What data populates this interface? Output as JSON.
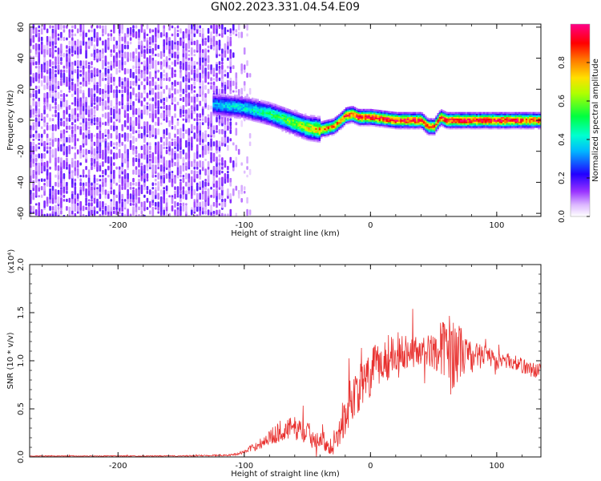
{
  "title": "GN02.2023.331.04.54.E09",
  "chart_data": [
    {
      "type": "heatmap",
      "xlabel": "Height of straight line (km)",
      "ylabel": "Frequency (Hz)",
      "xlim": [
        -270,
        135
      ],
      "ylim": [
        -62,
        62
      ],
      "xticks": [
        -200,
        -100,
        0,
        100
      ],
      "yticks": [
        -60,
        -40,
        -20,
        0,
        20,
        40,
        60
      ],
      "colorbar": {
        "label": "Normalized spectral amplitude",
        "range": [
          0,
          1
        ],
        "ticks": [
          "0.0",
          "0.2",
          "0.4",
          "0.6",
          "0.8"
        ],
        "tick_values": [
          0,
          0.2,
          0.4,
          0.6,
          0.8
        ],
        "colormap": "hsv-reversed (magenta-blue-cyan-green-yellow-red)"
      },
      "ridge": {
        "description": "frequency of peak spectral amplitude vs height",
        "x": [
          -125,
          -110,
          -100,
          -90,
          -80,
          -70,
          -60,
          -50,
          -40,
          -30,
          -25,
          -20,
          -15,
          -10,
          0,
          10,
          20,
          30,
          40,
          45,
          50,
          55,
          60,
          70,
          80,
          90,
          100,
          110,
          120,
          130
        ],
        "y": [
          10,
          9,
          8,
          6,
          4,
          1,
          -2,
          -5,
          -6,
          -4,
          -1,
          3,
          4,
          2,
          2,
          1,
          0,
          0,
          0,
          -4,
          -4,
          2,
          0,
          0,
          0,
          0,
          0,
          0,
          0,
          0
        ],
        "peak_amplitude": [
          0.35,
          0.4,
          0.4,
          0.45,
          0.5,
          0.55,
          0.6,
          0.7,
          0.8,
          0.8,
          0.85,
          0.9,
          0.9,
          0.9,
          0.95,
          0.95,
          0.95,
          0.95,
          0.9,
          0.85,
          0.85,
          0.9,
          0.95,
          0.95,
          0.95,
          0.95,
          0.95,
          0.95,
          0.9,
          0.9
        ]
      },
      "noise_region": {
        "x_range": [
          -270,
          -120
        ],
        "amplitude": 0.05
      }
    },
    {
      "type": "line",
      "xlabel": "Height of straight line (km)",
      "ylabel": "SNR (10 * v/v)",
      "y_multiplier": "(x10⁴)",
      "xlim": [
        -270,
        135
      ],
      "ylim": [
        0,
        2.0
      ],
      "xticks": [
        -200,
        -100,
        0,
        100
      ],
      "yticks": [
        "0.0",
        "0.5",
        "1.0",
        "1.5",
        "2.0"
      ],
      "ytick_values": [
        0,
        0.5,
        1.0,
        1.5,
        2.0
      ],
      "series": [
        {
          "color": "#e8302e",
          "x": [
            -270,
            -200,
            -150,
            -110,
            -100,
            -90,
            -80,
            -70,
            -60,
            -50,
            -40,
            -35,
            -30,
            -25,
            -20,
            -15,
            -10,
            -5,
            0,
            5,
            10,
            15,
            20,
            30,
            40,
            50,
            60,
            65,
            70,
            80,
            90,
            100,
            110,
            120,
            130,
            135
          ],
          "y": [
            0.01,
            0.01,
            0.01,
            0.02,
            0.05,
            0.12,
            0.2,
            0.28,
            0.3,
            0.25,
            0.18,
            0.15,
            0.1,
            0.25,
            0.45,
            0.6,
            0.7,
            0.75,
            0.85,
            0.95,
            1.0,
            1.05,
            1.1,
            1.1,
            1.1,
            1.1,
            1.15,
            1.1,
            1.1,
            1.05,
            1.05,
            1.0,
            1.0,
            0.95,
            0.9,
            0.9
          ],
          "noise": [
            0.005,
            0.005,
            0.005,
            0.01,
            0.02,
            0.05,
            0.08,
            0.12,
            0.12,
            0.12,
            0.1,
            0.1,
            0.08,
            0.15,
            0.25,
            0.25,
            0.25,
            0.25,
            0.25,
            0.25,
            0.25,
            0.25,
            0.2,
            0.18,
            0.15,
            0.18,
            0.35,
            0.4,
            0.3,
            0.15,
            0.12,
            0.1,
            0.08,
            0.08,
            0.08,
            0.08
          ]
        }
      ]
    }
  ]
}
